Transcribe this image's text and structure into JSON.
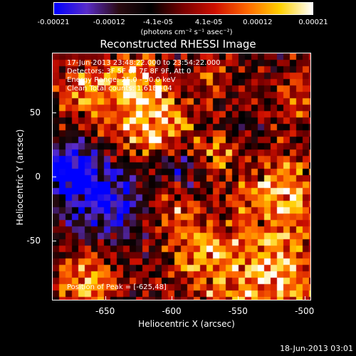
{
  "chart_data": {
    "type": "heatmap",
    "title": "Reconstructed RHESSI Image",
    "xlabel": "Heliocentric X (arcsec)",
    "ylabel": "Heliocentric Y (arcsec)",
    "xlim": [
      -690,
      -495
    ],
    "ylim": [
      -97,
      97
    ],
    "xticks": [
      "-650",
      "-600",
      "-550",
      "-500"
    ],
    "xtick_values": [
      -650,
      -600,
      -550,
      -500
    ],
    "yticks": [
      "50",
      "0",
      "-50"
    ],
    "ytick_values": [
      50,
      0,
      -50
    ],
    "colorbar": {
      "ticks": [
        "-0.00021",
        "-0.00012",
        "-4.1e-05",
        "4.1e-05",
        "0.00012",
        "0.00021"
      ],
      "tick_values": [
        -0.00021,
        -0.00012,
        -4.1e-05,
        4.1e-05,
        0.00012,
        0.00021
      ],
      "range": [
        -0.00021,
        0.00021
      ],
      "units": "(photons cm⁻² s⁻¹ asec⁻²)",
      "colormap": [
        "#0000ff",
        "#5a2cc8",
        "#2a0a10",
        "#000000",
        "#7a0000",
        "#d01000",
        "#ff6a00",
        "#ffd000",
        "#ffffff"
      ]
    },
    "annotations": [
      "17-Jun-2013 23:48:22.000 to 23:54:22.000",
      "Detectors: 3F 5F 6F 7F 8F 9F, Att 0",
      "Energy Range: 25.0 - 50.0 keV",
      "Clean    Total counts: 1.61E+04"
    ],
    "position_label": "Position of Peak = [-625,48]",
    "peak": {
      "x": -625,
      "y": 48
    }
  },
  "footer": {
    "timestamp": "18-Jun-2013 03:01"
  }
}
